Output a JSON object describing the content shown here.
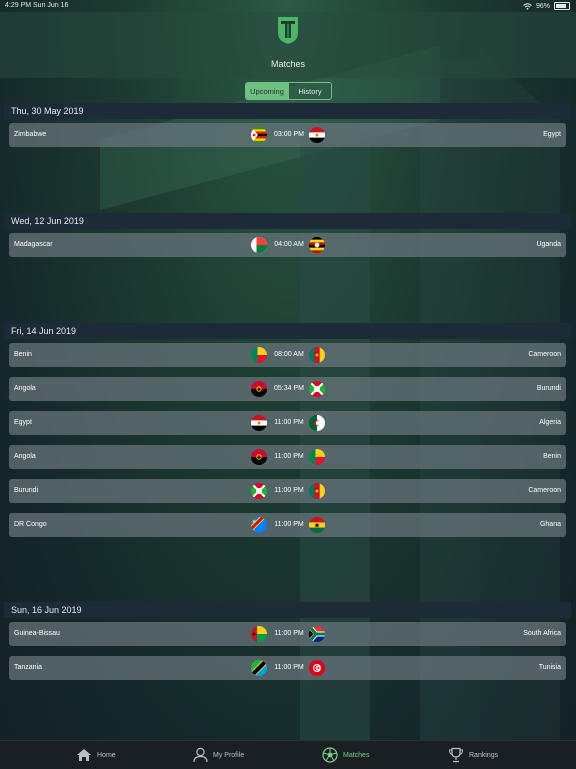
{
  "status_bar": {
    "time": "4:29 PM  Sun Jun 16",
    "battery": "96%"
  },
  "header": {
    "title": "Matches"
  },
  "segment": {
    "upcoming": "Upcoming",
    "history": "History"
  },
  "sections": [
    {
      "date": "Thu, 30 May 2019",
      "matches": [
        {
          "home": "Zimbabwe",
          "time": "03:00 PM",
          "away": "Egypt",
          "home_flag": "zimbabwe-flag",
          "away_flag": "egypt-flag"
        }
      ]
    },
    {
      "date": "Wed, 12 Jun 2019",
      "matches": [
        {
          "home": "Madagascar",
          "time": "04:00 AM",
          "away": "Uganda",
          "home_flag": "madagascar-flag",
          "away_flag": "uganda-flag"
        }
      ]
    },
    {
      "date": "Fri, 14 Jun 2019",
      "matches": [
        {
          "home": "Benin",
          "time": "08:00 AM",
          "away": "Cameroon",
          "home_flag": "benin-flag",
          "away_flag": "cameroon-flag"
        },
        {
          "home": "Angola",
          "time": "05:34 PM",
          "away": "Burundi",
          "home_flag": "angola-flag",
          "away_flag": "burundi-flag"
        },
        {
          "home": "Egypt",
          "time": "11:00 PM",
          "away": "Algeria",
          "home_flag": "egypt-flag",
          "away_flag": "algeria-flag"
        },
        {
          "home": "Angola",
          "time": "11:00 PM",
          "away": "Benin",
          "home_flag": "angola-flag",
          "away_flag": "benin-flag"
        },
        {
          "home": "Burundi",
          "time": "11:00 PM",
          "away": "Cameroon",
          "home_flag": "burundi-flag",
          "away_flag": "cameroon-flag"
        },
        {
          "home": "DR Congo",
          "time": "11:00 PM",
          "away": "Ghana",
          "home_flag": "dr-congo-flag",
          "away_flag": "ghana-flag"
        }
      ]
    },
    {
      "date": "Sun, 16 Jun 2019",
      "matches": [
        {
          "home": "Guinea-Bissau",
          "time": "11:00 PM",
          "away": "South Africa",
          "home_flag": "guinea-bissau-flag",
          "away_flag": "south-africa-flag"
        },
        {
          "home": "Tanzania",
          "time": "11:00 PM",
          "away": "Tunisia",
          "home_flag": "tanzania-flag",
          "away_flag": "tunisia-flag"
        }
      ]
    }
  ],
  "tabs": [
    {
      "label": "Home",
      "icon": "home-icon"
    },
    {
      "label": "My Profile",
      "icon": "profile-icon"
    },
    {
      "label": "Matches",
      "icon": "soccer-ball-icon",
      "active": true
    },
    {
      "label": "Rankings",
      "icon": "trophy-icon"
    }
  ],
  "colors": {
    "accent": "#79d08c",
    "section_header": "#1d2a37",
    "row": "#69767d"
  }
}
